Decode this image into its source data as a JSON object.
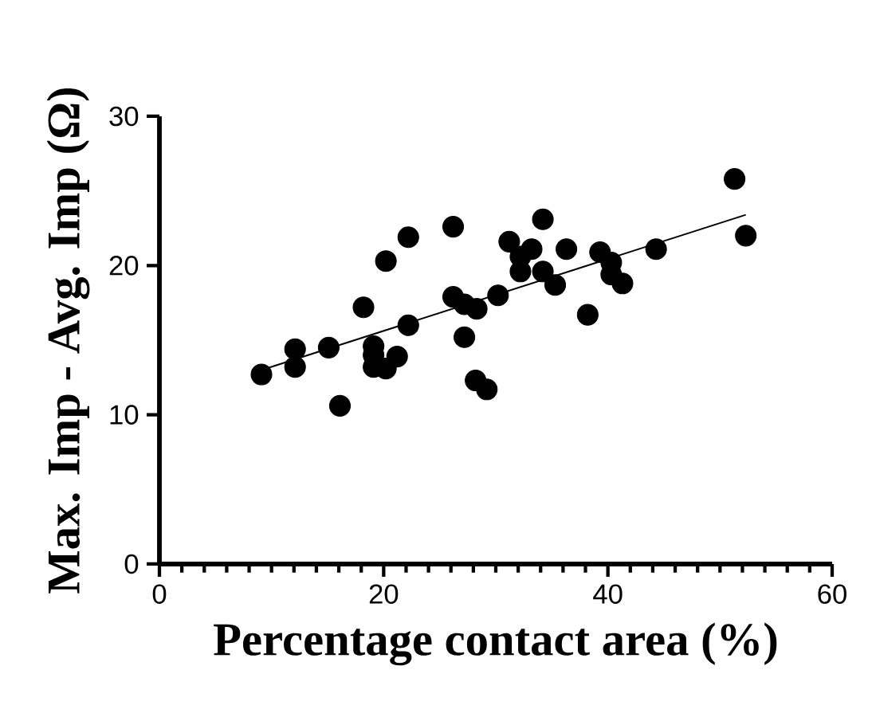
{
  "chart_data": {
    "type": "scatter",
    "xlabel": "Percentage contact area (%)",
    "ylabel": "Max. Imp - Avg. Imp (Ω)",
    "xlim": [
      0,
      60
    ],
    "ylim": [
      0,
      30
    ],
    "xticks": [
      0,
      20,
      40,
      60
    ],
    "yticks": [
      0,
      10,
      20,
      30
    ],
    "grid": false,
    "marker": "circle",
    "series": [
      {
        "color": "#000000",
        "x": [
          9.1,
          12.1,
          12.1,
          15.1,
          16.1,
          18.2,
          19.1,
          19.1,
          19.1,
          20.2,
          20.2,
          21.2,
          22.2,
          22.2,
          26.2,
          26.2,
          27.2,
          28.3,
          27.2,
          28.2,
          29.2,
          30.2,
          31.2,
          32.2,
          32.2,
          33.2,
          34.2,
          34.2,
          35.3,
          36.3,
          38.2,
          39.3,
          40.3,
          40.3,
          41.3,
          44.3,
          51.3,
          52.3
        ],
        "values": [
          12.7,
          14.4,
          13.2,
          14.5,
          10.6,
          17.2,
          14.6,
          14.0,
          13.2,
          13.1,
          20.3,
          13.9,
          16.0,
          21.9,
          22.6,
          17.9,
          17.4,
          17.1,
          15.2,
          12.3,
          11.7,
          18.0,
          21.6,
          20.6,
          19.6,
          21.1,
          23.1,
          19.6,
          18.7,
          21.1,
          16.7,
          20.9,
          20.2,
          19.4,
          18.8,
          21.1,
          25.8,
          22.0
        ]
      },
      {
        "type": "line",
        "color": "#000000",
        "marker": "none",
        "x": [
          9.1,
          52.3
        ],
        "values": [
          13.0,
          23.4
        ]
      }
    ]
  }
}
